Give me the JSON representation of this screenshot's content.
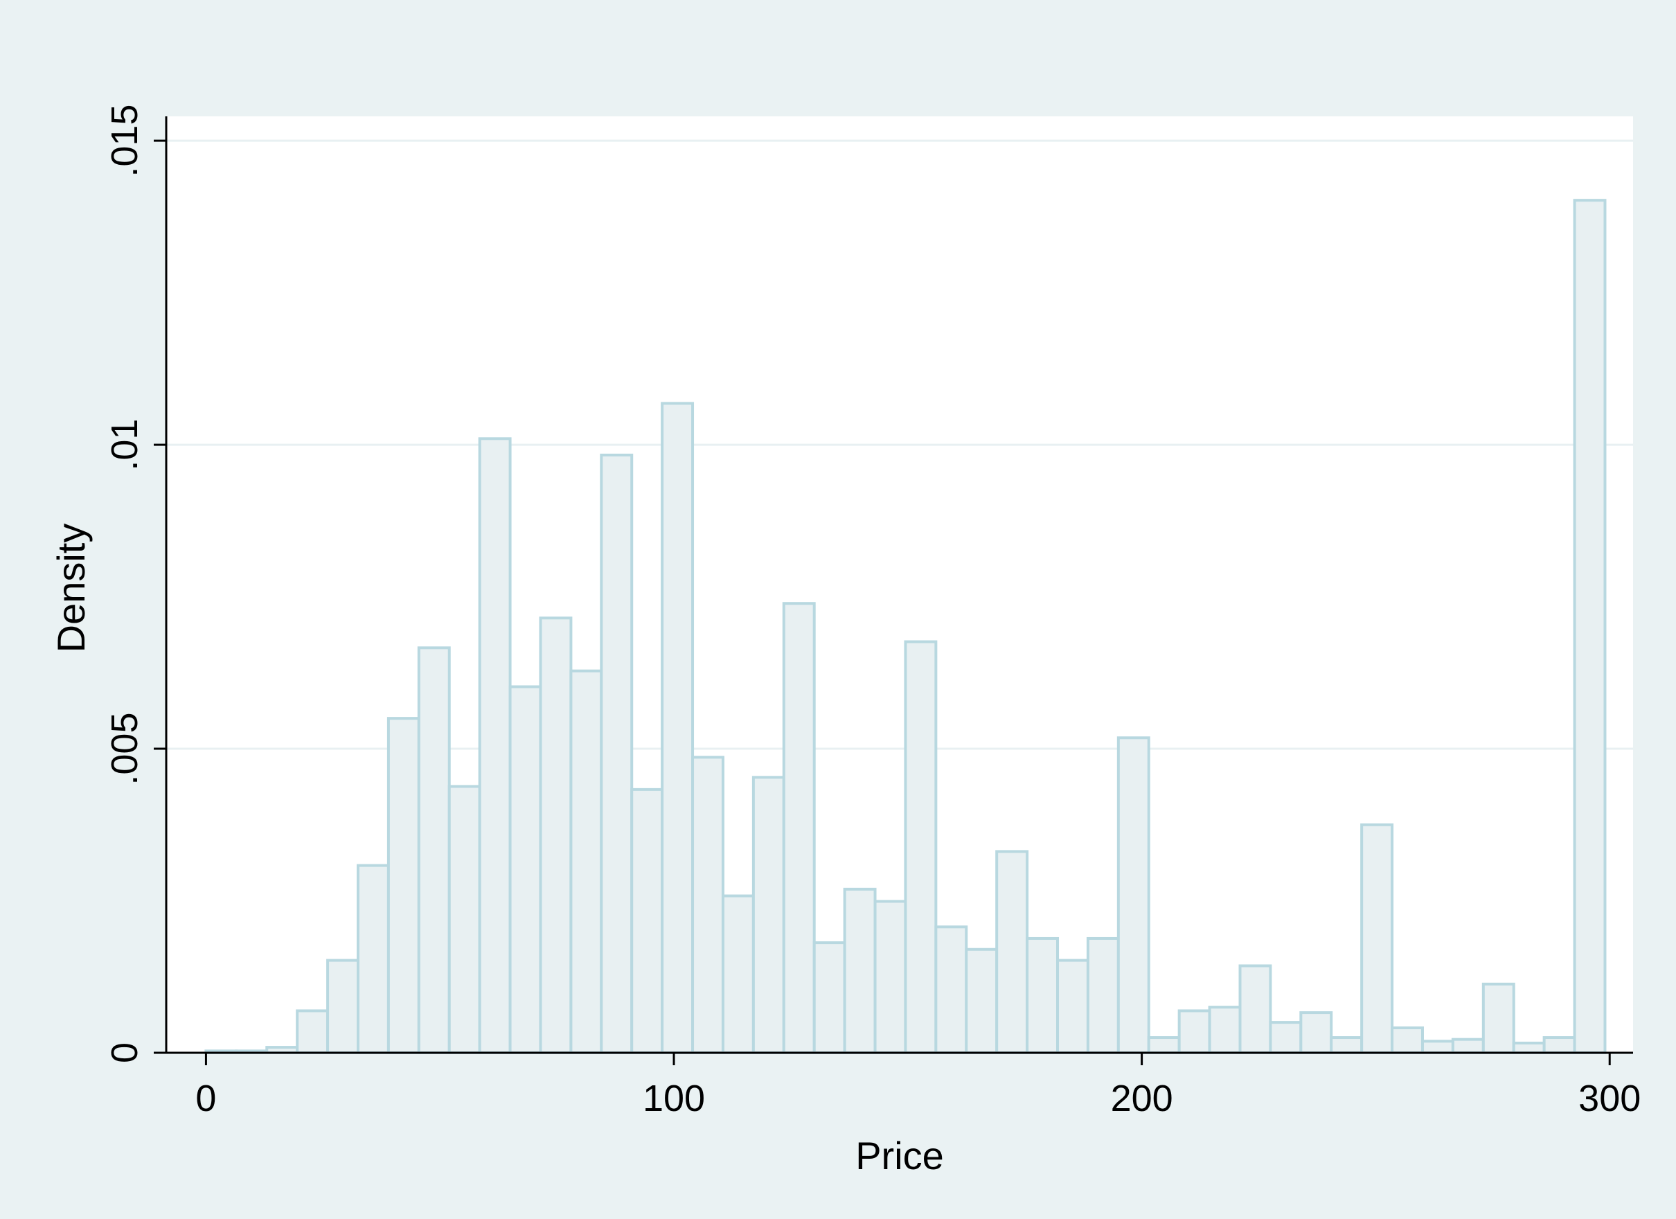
{
  "chart_data": {
    "type": "bar",
    "subtype": "histogram",
    "xlabel": "Price",
    "ylabel": "Density",
    "xlim": [
      -8.5,
      305
    ],
    "ylim": [
      0,
      0.0154
    ],
    "x_ticks": [
      {
        "value": 0,
        "label": "0"
      },
      {
        "value": 100,
        "label": "100"
      },
      {
        "value": 200,
        "label": "200"
      },
      {
        "value": 300,
        "label": "300"
      }
    ],
    "y_ticks": [
      {
        "value": 0,
        "label": "0"
      },
      {
        "value": 0.005,
        "label": ".005"
      },
      {
        "value": 0.01,
        "label": ".01"
      },
      {
        "value": 0.015,
        "label": ".015"
      }
    ],
    "grid": true,
    "bin_width": 6.5,
    "bin_start": 0,
    "values": [
      3e-05,
      3e-05,
      9e-05,
      0.00069,
      0.00152,
      0.00308,
      0.0055,
      0.00666,
      0.00438,
      0.0101,
      0.00602,
      0.00715,
      0.00628,
      0.00983,
      0.00433,
      0.01068,
      0.00486,
      0.00258,
      0.00453,
      0.00739,
      0.00181,
      0.00269,
      0.00249,
      0.00676,
      0.00207,
      0.0017,
      0.00331,
      0.00188,
      0.00152,
      0.00188,
      0.00518,
      0.00025,
      0.00069,
      0.00075,
      0.00143,
      0.0005,
      0.00066,
      0.00025,
      0.00375,
      0.00041,
      0.00019,
      0.00022,
      0.00113,
      0.00016,
      0.00025,
      0.01402
    ],
    "colors": {
      "bar_fill": "#e8f0f2",
      "bar_stroke": "#b8d8e0",
      "grid": "#e8f0f2",
      "background_outer": "#eaf2f3",
      "background_plot": "#ffffff",
      "axis": "#000000"
    }
  }
}
